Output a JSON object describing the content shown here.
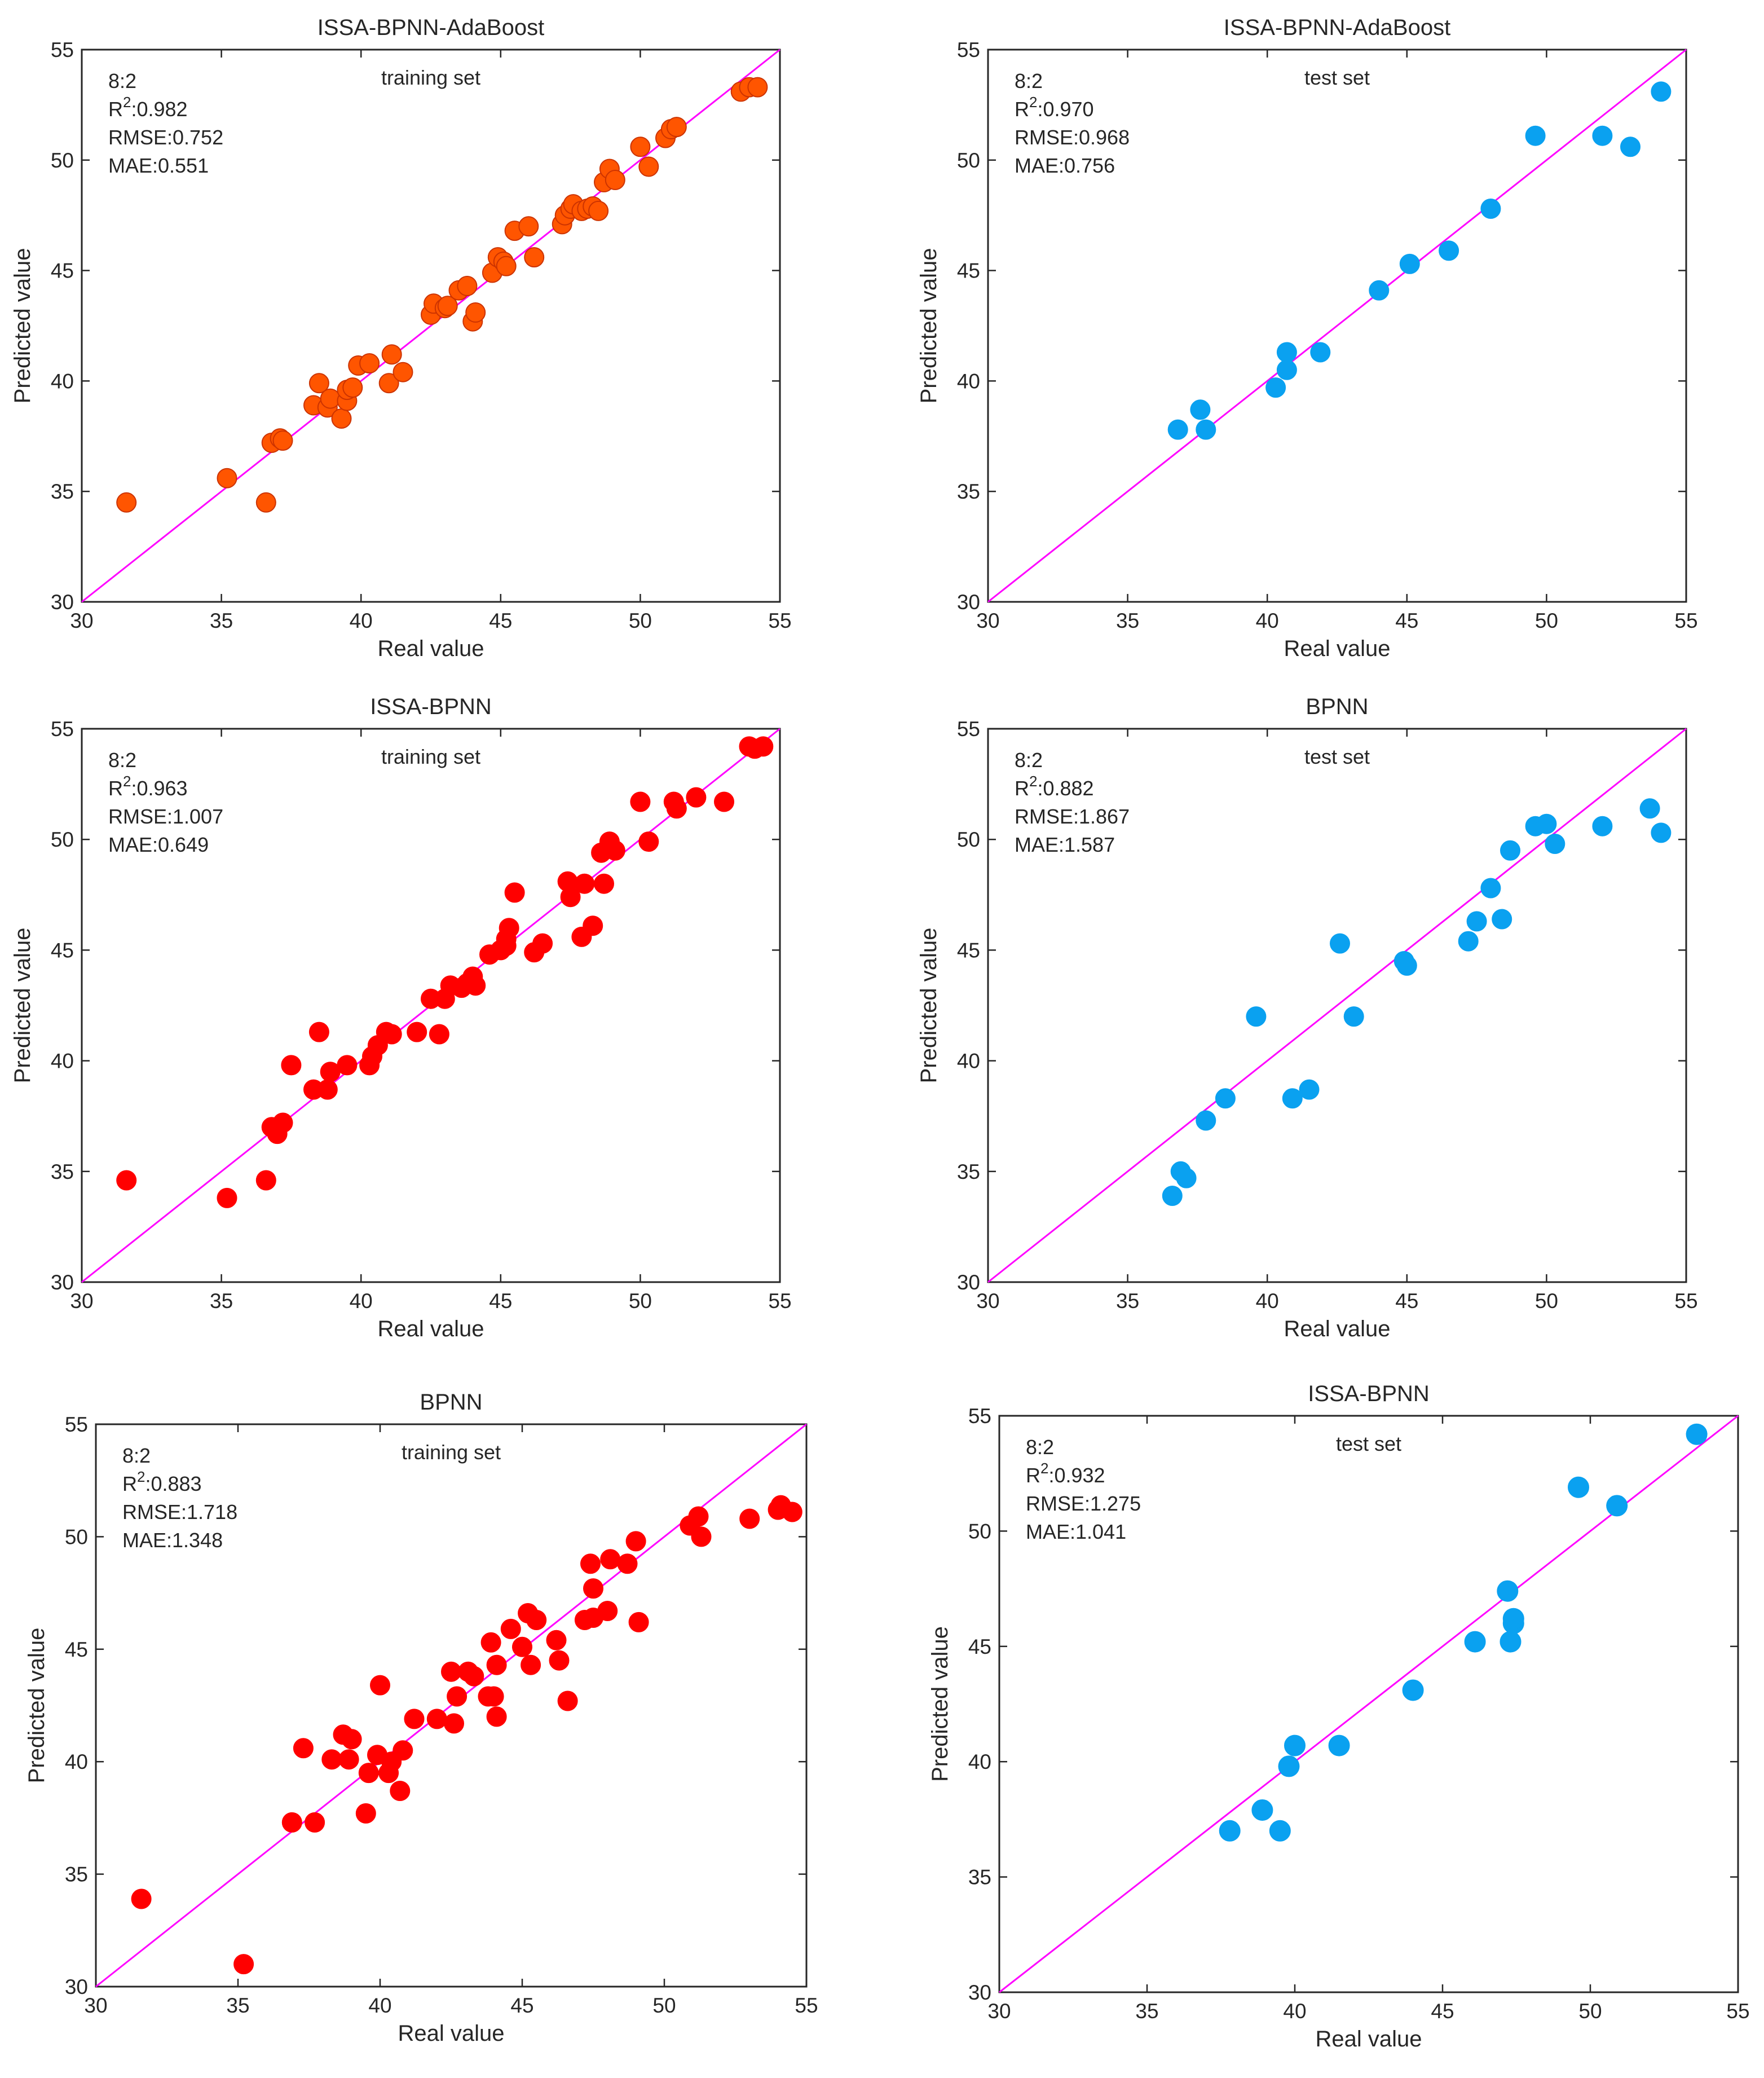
{
  "figure_title": "Predicted vs real value scatter plots (8:2 split)",
  "chart_data": [
    {
      "type": "scatter",
      "title": "ISSA-BPNN-AdaBoost",
      "subtitle": "training set",
      "xlabel": "Real value",
      "ylabel": "Predicted value",
      "xlim": [
        30,
        55
      ],
      "ylim": [
        30,
        55
      ],
      "xticks": [
        "30",
        "35",
        "40",
        "45",
        "50",
        "55"
      ],
      "yticks": [
        "30",
        "35",
        "40",
        "45",
        "50",
        "55"
      ],
      "split": "8:2",
      "r2_prefix": "R",
      "r2_sup": "2",
      "r2_value": ":0.982",
      "rmse": "RMSE:0.752",
      "mae": "MAE:0.551",
      "marker_color": "#ff5500",
      "marker_edge": "#cc3300",
      "line_color": "#ff00ff",
      "x": [
        31.6,
        35.2,
        36.6,
        36.8,
        37.1,
        37.2,
        38.3,
        38.5,
        38.8,
        38.9,
        39.3,
        39.5,
        39.5,
        39.7,
        39.9,
        40.3,
        41.0,
        41.1,
        41.5,
        42.5,
        42.6,
        43.0,
        43.1,
        43.5,
        43.8,
        44.0,
        44.1,
        44.7,
        44.9,
        45.1,
        45.2,
        45.5,
        46.0,
        46.2,
        47.2,
        47.3,
        47.5,
        47.6,
        47.9,
        48.1,
        48.3,
        48.5,
        48.7,
        48.9,
        49.1,
        50.0,
        50.3,
        50.9,
        51.1,
        51.3,
        53.6,
        53.9,
        54.2
      ],
      "y": [
        34.5,
        35.6,
        34.5,
        37.2,
        37.4,
        37.3,
        38.9,
        39.9,
        38.8,
        39.2,
        38.3,
        39.1,
        39.6,
        39.7,
        40.7,
        40.8,
        39.9,
        41.2,
        40.4,
        43.0,
        43.5,
        43.3,
        43.4,
        44.1,
        44.3,
        42.7,
        43.1,
        44.9,
        45.6,
        45.4,
        45.2,
        46.8,
        47.0,
        45.6,
        47.1,
        47.5,
        47.8,
        48.0,
        47.7,
        47.8,
        47.9,
        47.7,
        49.0,
        49.6,
        49.1,
        50.6,
        49.7,
        51.0,
        51.4,
        51.5,
        53.1,
        53.3,
        53.3
      ]
    },
    {
      "type": "scatter",
      "title": "ISSA-BPNN-AdaBoost",
      "subtitle": "test set",
      "xlabel": "Real value",
      "ylabel": "Predicted value",
      "xlim": [
        30,
        55
      ],
      "ylim": [
        30,
        55
      ],
      "xticks": [
        "30",
        "35",
        "40",
        "45",
        "50",
        "55"
      ],
      "yticks": [
        "30",
        "35",
        "40",
        "45",
        "50",
        "55"
      ],
      "split": "8:2",
      "r2_prefix": "R",
      "r2_sup": "2",
      "r2_value": ":0.970",
      "rmse": "RMSE:0.968",
      "mae": "MAE:0.756",
      "marker_color": "#0aa1f0",
      "marker_edge": "#0aa1f0",
      "line_color": "#ff00ff",
      "x": [
        36.8,
        37.6,
        37.8,
        40.3,
        40.7,
        40.7,
        41.9,
        44.0,
        45.1,
        46.5,
        48.0,
        49.6,
        52.0,
        53.0,
        54.1
      ],
      "y": [
        37.8,
        38.7,
        37.8,
        39.7,
        40.5,
        41.3,
        41.3,
        44.1,
        45.3,
        45.9,
        47.8,
        51.1,
        51.1,
        50.6,
        53.1
      ]
    },
    {
      "type": "scatter",
      "title": "ISSA-BPNN",
      "subtitle": "training set",
      "xlabel": "Real value",
      "ylabel": "Predicted value",
      "xlim": [
        30,
        55
      ],
      "ylim": [
        30,
        55
      ],
      "xticks": [
        "30",
        "35",
        "40",
        "45",
        "50",
        "55"
      ],
      "yticks": [
        "30",
        "35",
        "40",
        "45",
        "50",
        "55"
      ],
      "split": "8:2",
      "r2_prefix": "R",
      "r2_sup": "2",
      "r2_value": ":0.963",
      "rmse": "RMSE:1.007",
      "mae": "MAE:0.649",
      "marker_color": "#ff0000",
      "marker_edge": "#ff0000",
      "line_color": "#ff00ff",
      "x": [
        31.6,
        35.2,
        36.6,
        36.8,
        37.0,
        37.2,
        37.5,
        38.3,
        38.5,
        38.8,
        38.9,
        39.5,
        40.3,
        40.4,
        40.6,
        40.9,
        41.1,
        42.0,
        42.5,
        42.8,
        43.0,
        43.2,
        43.6,
        43.8,
        44.0,
        44.1,
        44.6,
        45.0,
        45.2,
        45.2,
        45.3,
        45.5,
        46.2,
        46.5,
        47.4,
        47.5,
        47.9,
        48.0,
        48.3,
        48.6,
        48.7,
        48.9,
        49.1,
        50.0,
        50.3,
        51.2,
        51.3,
        52.0,
        53.0,
        53.9,
        54.1,
        54.4
      ],
      "y": [
        34.6,
        33.8,
        34.6,
        37.0,
        36.7,
        37.2,
        39.8,
        38.7,
        41.3,
        38.7,
        39.5,
        39.8,
        39.8,
        40.2,
        40.7,
        41.3,
        41.2,
        41.3,
        42.8,
        41.2,
        42.8,
        43.4,
        43.3,
        43.5,
        43.8,
        43.4,
        44.8,
        45.0,
        45.2,
        45.5,
        46.0,
        47.6,
        44.9,
        45.3,
        48.1,
        47.4,
        45.6,
        48.0,
        46.1,
        49.4,
        48.0,
        49.9,
        49.5,
        51.7,
        49.9,
        51.7,
        51.4,
        51.9,
        51.7,
        54.2,
        54.1,
        54.2
      ]
    },
    {
      "type": "scatter",
      "title": "BPNN",
      "subtitle": "test set",
      "xlabel": "Real value",
      "ylabel": "Predicted value",
      "xlim": [
        30,
        55
      ],
      "ylim": [
        30,
        55
      ],
      "xticks": [
        "30",
        "35",
        "40",
        "45",
        "50",
        "55"
      ],
      "yticks": [
        "30",
        "35",
        "40",
        "45",
        "50",
        "55"
      ],
      "split": "8:2",
      "r2_prefix": "R",
      "r2_sup": "2",
      "r2_value": ":0.882",
      "rmse": "RMSE:1.867",
      "mae": "MAE:1.587",
      "marker_color": "#0aa1f0",
      "marker_edge": "#0aa1f0",
      "line_color": "#ff00ff",
      "x": [
        36.6,
        36.9,
        37.1,
        37.8,
        38.5,
        39.6,
        40.9,
        41.5,
        42.6,
        43.1,
        44.9,
        45.0,
        47.2,
        47.5,
        48.0,
        48.4,
        48.7,
        49.6,
        50.0,
        50.3,
        52.0,
        53.7,
        54.1
      ],
      "y": [
        33.9,
        35.0,
        34.7,
        37.3,
        38.3,
        42.0,
        38.3,
        38.7,
        45.3,
        42.0,
        44.5,
        44.3,
        45.4,
        46.3,
        47.8,
        46.4,
        49.5,
        50.6,
        50.7,
        49.8,
        50.6,
        51.4,
        50.3
      ]
    },
    {
      "type": "scatter",
      "title": "BPNN",
      "subtitle": "training set",
      "xlabel": "Real value",
      "ylabel": "Predicted value",
      "xlim": [
        30,
        55
      ],
      "ylim": [
        30,
        55
      ],
      "xticks": [
        "30",
        "35",
        "40",
        "45",
        "50",
        "55"
      ],
      "yticks": [
        "30",
        "35",
        "40",
        "45",
        "50",
        "55"
      ],
      "split": "8:2",
      "r2_prefix": "R",
      "r2_sup": "2",
      "r2_value": ":0.883",
      "rmse": "RMSE:1.718",
      "mae": "MAE:1.348",
      "marker_color": "#ff0000",
      "marker_edge": "#ff0000",
      "line_color": "#ff00ff",
      "x": [
        31.6,
        35.2,
        36.9,
        37.3,
        37.7,
        38.3,
        38.7,
        38.9,
        39.0,
        39.5,
        39.6,
        39.9,
        40.0,
        40.3,
        40.4,
        40.7,
        40.8,
        41.2,
        42.0,
        42.5,
        42.6,
        42.7,
        43.1,
        43.3,
        43.8,
        43.9,
        44.0,
        44.1,
        44.1,
        44.6,
        45.0,
        45.2,
        45.3,
        45.5,
        46.2,
        46.3,
        46.6,
        47.2,
        47.4,
        47.5,
        47.5,
        48.0,
        48.1,
        48.7,
        49.0,
        49.1,
        50.9,
        51.2,
        51.3,
        53.0,
        54.0,
        54.1,
        54.5
      ],
      "y": [
        33.9,
        31.0,
        37.3,
        40.6,
        37.3,
        40.1,
        41.2,
        40.1,
        41.0,
        37.7,
        39.5,
        40.3,
        43.4,
        39.5,
        40.0,
        38.7,
        40.5,
        41.9,
        41.9,
        44.0,
        41.7,
        42.9,
        44.0,
        43.8,
        42.9,
        45.3,
        42.9,
        44.3,
        42.0,
        45.9,
        45.1,
        46.6,
        44.3,
        46.3,
        45.4,
        44.5,
        42.7,
        46.3,
        48.8,
        47.7,
        46.4,
        46.7,
        49.0,
        48.8,
        49.8,
        46.2,
        50.5,
        50.9,
        50.0,
        50.8,
        51.2,
        51.4,
        51.1
      ]
    },
    {
      "type": "scatter",
      "title": "ISSA-BPNN",
      "subtitle": "test set",
      "xlabel": "Real value",
      "ylabel": "Predicted value",
      "xlim": [
        30,
        55
      ],
      "ylim": [
        30,
        55
      ],
      "xticks": [
        "30",
        "35",
        "40",
        "45",
        "50",
        "55"
      ],
      "yticks": [
        "30",
        "35",
        "40",
        "45",
        "50",
        "55"
      ],
      "split": "8:2",
      "r2_prefix": "R",
      "r2_sup": "2",
      "r2_value": ":0.932",
      "rmse": "RMSE:1.275",
      "mae": "MAE:1.041",
      "marker_color": "#0aa1f0",
      "marker_edge": "#0aa1f0",
      "line_color": "#ff00ff",
      "x": [
        37.8,
        38.9,
        39.5,
        39.8,
        40.0,
        41.5,
        44.0,
        46.1,
        47.2,
        47.3,
        47.4,
        47.4,
        49.6,
        50.9,
        53.6
      ],
      "y": [
        37.0,
        37.9,
        37.0,
        39.8,
        40.7,
        40.7,
        43.1,
        45.2,
        47.4,
        45.2,
        46.0,
        46.2,
        51.9,
        51.1,
        54.2
      ]
    }
  ]
}
